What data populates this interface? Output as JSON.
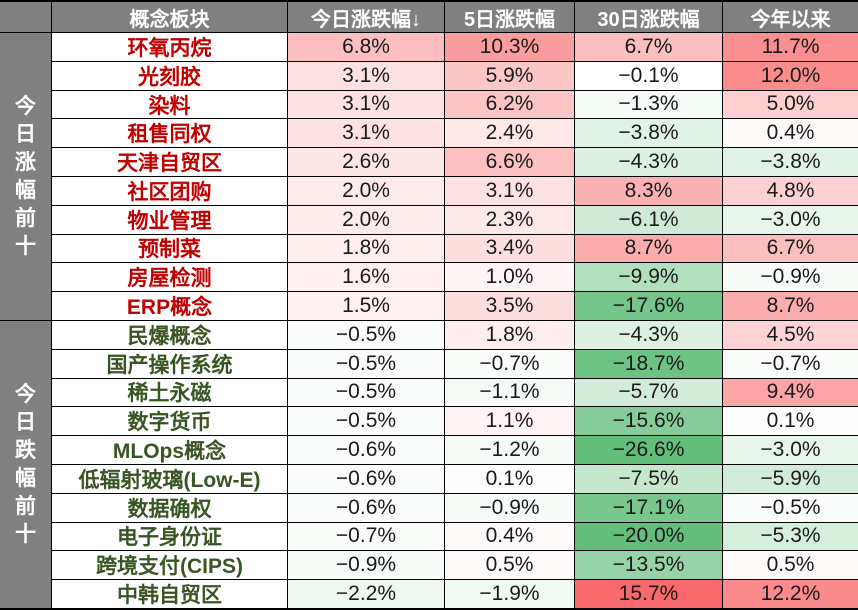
{
  "colors": {
    "header_bg": "#808080",
    "header_text": "#FFFFFF",
    "sidebar_bg": "#808080",
    "sidebar_text": "#FFFFFF",
    "gain_name_text": "#C00000",
    "loss_name_text": "#375623",
    "value_text": "#1A1A1A",
    "border": "#000000",
    "heat_red_max": "#F8696B",
    "heat_green_max": "#63BE7B",
    "heat_mid": "#FFFFFF"
  },
  "heat_scale": {
    "red_full_at": 15.7,
    "green_full_at": 20.0
  },
  "sidebar": {
    "top_label": "今日涨幅前十",
    "bottom_label": "今日跌幅前十"
  },
  "chart_data": {
    "type": "table",
    "subtype": "heatmap",
    "unit": "%",
    "columns": [
      "概念板块",
      "今日涨跌幅↓",
      "5日涨跌幅",
      "30日涨跌幅",
      "今年以来"
    ],
    "groups": [
      {
        "label": "今日涨幅前十",
        "rows": [
          {
            "name": "环氧丙烷",
            "values": [
              6.8,
              10.3,
              6.7,
              11.7
            ]
          },
          {
            "name": "光刻胶",
            "values": [
              3.1,
              5.9,
              -0.1,
              12.0
            ]
          },
          {
            "name": "染料",
            "values": [
              3.1,
              6.2,
              -1.3,
              5.0
            ]
          },
          {
            "name": "租售同权",
            "values": [
              3.1,
              2.4,
              -3.8,
              0.4
            ]
          },
          {
            "name": "天津自贸区",
            "values": [
              2.6,
              6.6,
              -4.3,
              -3.8
            ]
          },
          {
            "name": "社区团购",
            "values": [
              2.0,
              3.1,
              8.3,
              4.8
            ]
          },
          {
            "name": "物业管理",
            "values": [
              2.0,
              2.3,
              -6.1,
              -3.0
            ]
          },
          {
            "name": "预制菜",
            "values": [
              1.8,
              3.4,
              8.7,
              6.7
            ]
          },
          {
            "name": "房屋检测",
            "values": [
              1.6,
              1.0,
              -9.9,
              -0.9
            ]
          },
          {
            "name": "ERP概念",
            "values": [
              1.5,
              3.5,
              -17.6,
              8.7
            ]
          }
        ]
      },
      {
        "label": "今日跌幅前十",
        "rows": [
          {
            "name": "民爆概念",
            "values": [
              -0.5,
              1.8,
              -4.3,
              4.5
            ]
          },
          {
            "name": "国产操作系统",
            "values": [
              -0.5,
              -0.7,
              -18.7,
              -0.7
            ]
          },
          {
            "name": "稀土永磁",
            "values": [
              -0.5,
              -1.1,
              -5.7,
              9.4
            ]
          },
          {
            "name": "数字货币",
            "values": [
              -0.5,
              1.1,
              -15.6,
              0.1
            ]
          },
          {
            "name": "MLOps概念",
            "values": [
              -0.6,
              -1.2,
              -26.6,
              -3.0
            ]
          },
          {
            "name": "低辐射玻璃(Low-E)",
            "values": [
              -0.6,
              0.1,
              -7.5,
              -5.9
            ]
          },
          {
            "name": "数据确权",
            "values": [
              -0.6,
              -0.9,
              -17.1,
              -0.5
            ]
          },
          {
            "name": "电子身份证",
            "values": [
              -0.7,
              0.4,
              -20.0,
              -5.3
            ]
          },
          {
            "name": "跨境支付(CIPS)",
            "values": [
              -0.9,
              0.5,
              -13.5,
              0.5
            ]
          },
          {
            "name": "中韩自贸区",
            "values": [
              -2.2,
              -1.9,
              15.7,
              12.2
            ]
          }
        ]
      }
    ]
  }
}
